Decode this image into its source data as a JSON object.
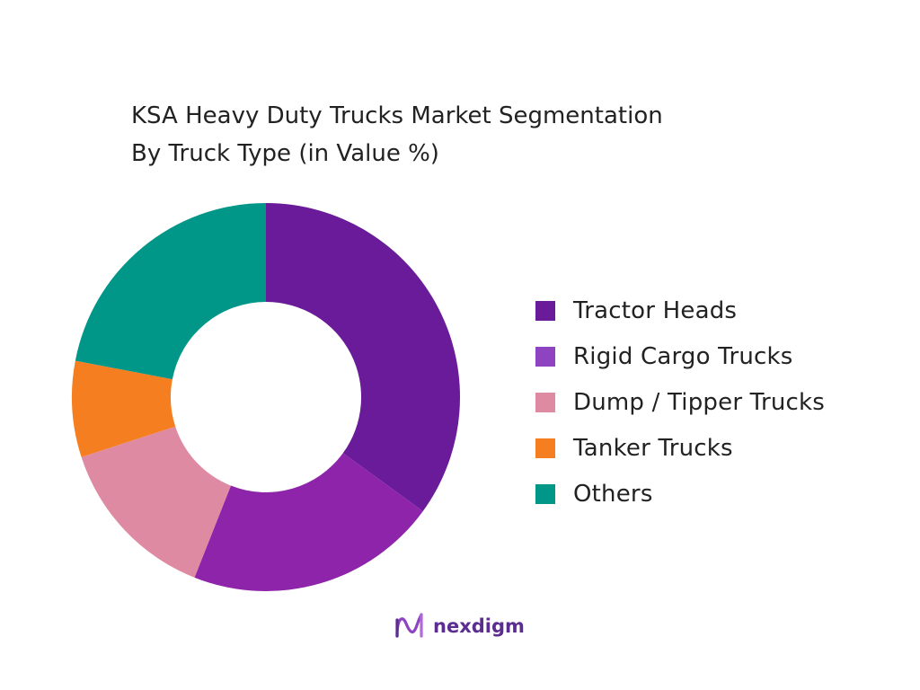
{
  "title_lines": [
    "KSA Heavy Duty Trucks Market Segmentation",
    "By Truck Type (in Value %)"
  ],
  "chart_data": {
    "type": "pie",
    "variant": "donut",
    "title": "KSA Heavy Duty Trucks Market Segmentation By Truck Type (in Value %)",
    "categories": [
      "Tractor Heads",
      "Rigid Cargo Trucks",
      "Dump / Tipper Trucks",
      "Tanker Trucks",
      "Others"
    ],
    "values": [
      35,
      21,
      14,
      8,
      22
    ],
    "colors": [
      "#691b99",
      "#8e24aa",
      "#df8aa3",
      "#f57f20",
      "#009688"
    ],
    "legend_swatch_colors": [
      "#691b99",
      "#8e44c0",
      "#df8aa3",
      "#f57f20",
      "#009688"
    ],
    "start_angle": "12 o'clock",
    "direction": "clockwise",
    "legend_position": "right"
  },
  "logo": {
    "brand": "nexdigm",
    "icon": "nexdigm-logo-icon"
  }
}
